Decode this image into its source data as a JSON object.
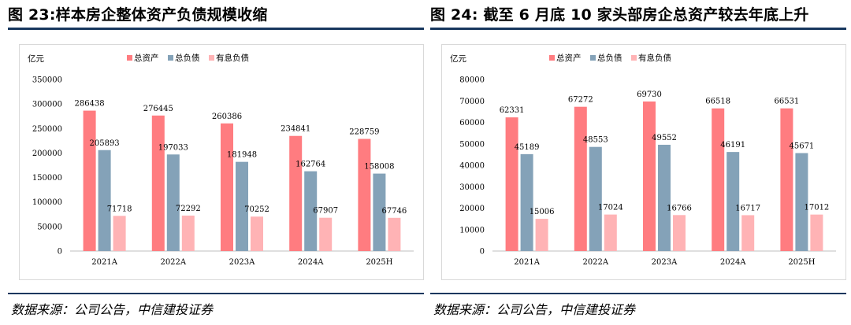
{
  "charts": [
    {
      "title": "图 23:样本房企整体资产负债规模收缩",
      "source": "数据来源：公司公告，中信建投证券"
    },
    {
      "title": "图 24: 截至 6 月底 10 家头部房企总资产较去年底上升",
      "source": "数据来源：公司公告，中信建投证券"
    }
  ],
  "colors": {
    "series1": "#ff7c80",
    "series2": "#84a2b8",
    "series3": "#ffb3b5",
    "axis": "#bfbfbf",
    "rule": "#17375e"
  },
  "chart_data": [
    {
      "type": "bar",
      "unit_label": "亿元",
      "categories": [
        "2021A",
        "2022A",
        "2023A",
        "2024A",
        "2025H"
      ],
      "series": [
        {
          "name": "总资产",
          "values": [
            286438,
            276445,
            260386,
            234841,
            228759
          ]
        },
        {
          "name": "总负债",
          "values": [
            205893,
            197033,
            181948,
            162764,
            158008
          ]
        },
        {
          "name": "有息负债",
          "values": [
            71718,
            72292,
            70252,
            67907,
            67746
          ]
        }
      ],
      "ylim": [
        0,
        350000
      ],
      "yticks": [
        "0",
        "50000",
        "100000",
        "150000",
        "200000",
        "250000",
        "300000",
        "350000"
      ],
      "legend": "top",
      "grid": false
    },
    {
      "type": "bar",
      "unit_label": "亿元",
      "categories": [
        "2021A",
        "2022A",
        "2023A",
        "2024A",
        "2025H"
      ],
      "series": [
        {
          "name": "总资产",
          "values": [
            62331,
            67272,
            69730,
            66518,
            66531
          ]
        },
        {
          "name": "总负债",
          "values": [
            45189,
            48553,
            49552,
            46191,
            45671
          ]
        },
        {
          "name": "有息负债",
          "values": [
            15006,
            17024,
            16766,
            16717,
            17012
          ]
        }
      ],
      "ylim": [
        0,
        80000
      ],
      "yticks": [
        "0",
        "10000",
        "20000",
        "30000",
        "40000",
        "50000",
        "60000",
        "70000",
        "80000"
      ],
      "legend": "top",
      "grid": false
    }
  ]
}
